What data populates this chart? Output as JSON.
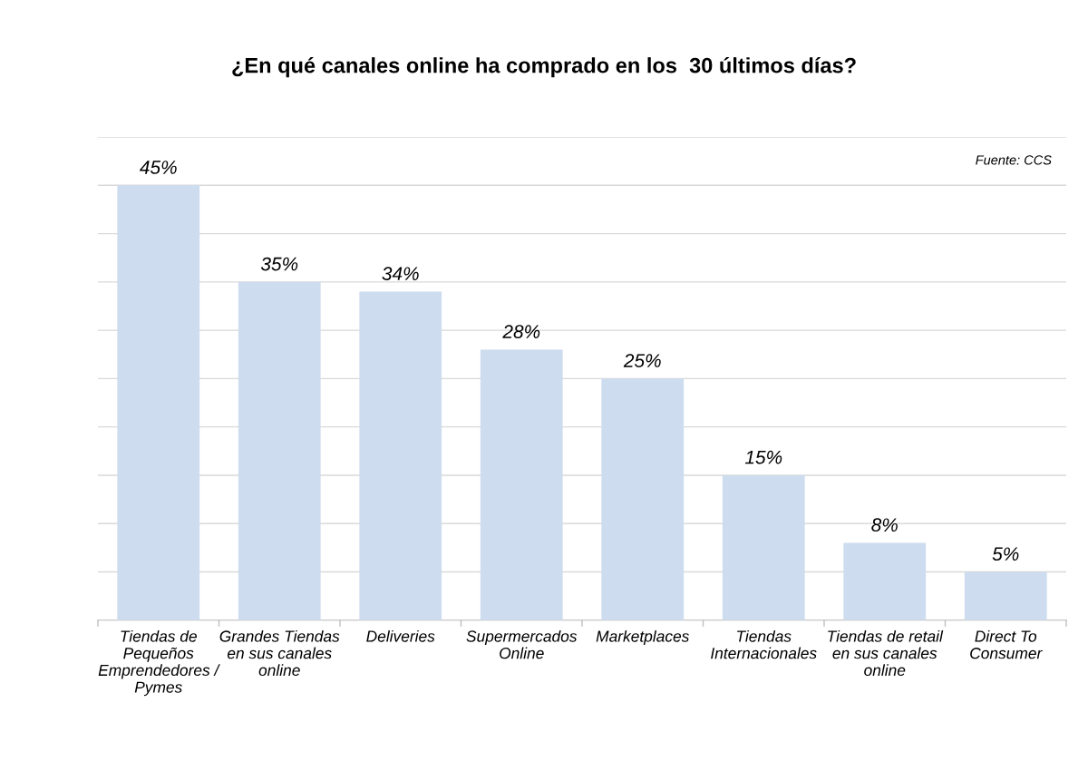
{
  "chart_data": {
    "type": "bar",
    "title": "¿En qué canales online ha comprado en los  30 últimos días?",
    "categories": [
      "Tiendas de\nPequeños\nEmprendedores /\nPymes",
      "Grandes Tiendas\nen sus canales\nonline",
      "Deliveries",
      "Supermercados\nOnline",
      "Marketplaces",
      "Tiendas\nInternacionales",
      "Tiendas de retail\nen sus canales\nonline",
      "Direct To\nConsumer"
    ],
    "values": [
      45,
      35,
      34,
      28,
      25,
      15,
      8,
      5
    ],
    "value_labels": [
      "45%",
      "35%",
      "34%",
      "28%",
      "25%",
      "15%",
      "8%",
      "5%"
    ],
    "color": "#cddcee",
    "ylim": [
      0,
      50
    ],
    "yticks": [
      {
        "value": 0,
        "label": null
      },
      {
        "value": 5,
        "label": null
      },
      {
        "value": 10,
        "label": null
      },
      {
        "value": 15,
        "label": null
      },
      {
        "value": 20,
        "label": null
      },
      {
        "value": 25,
        "label": null
      },
      {
        "value": 30,
        "label": null
      },
      {
        "value": 35,
        "label": null
      },
      {
        "value": 40,
        "label": null
      },
      {
        "value": 45,
        "label": null
      },
      {
        "value": 50,
        "label": null
      }
    ],
    "grid": "y",
    "tick_labels": "x",
    "annotations": [
      "Fuente: CCS"
    ]
  }
}
